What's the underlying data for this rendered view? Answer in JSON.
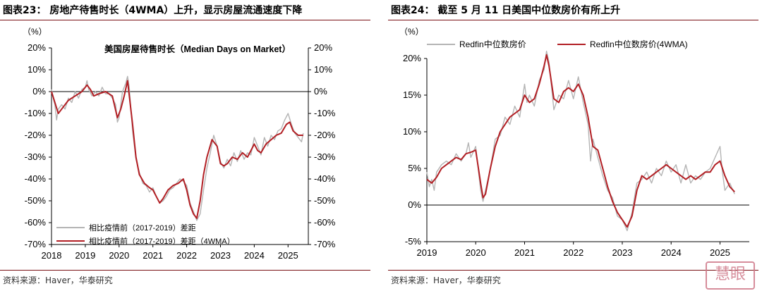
{
  "left": {
    "figure_title": "图表23：  房地产待售时长（4WMA）上升，显示房屋流通速度下降",
    "source": "资料来源：Haver，华泰研究",
    "unit_label": "（%）",
    "inner_title": "美国房屋待售时长（Median Days on Market）",
    "legend": [
      "相比疫情前（2017-2019）差距",
      "相比疫情前（2017-2019）差距（4WMA）"
    ]
  },
  "right": {
    "figure_title": "图表24：  截至 5 月 11 日美国中位数房价有所上升",
    "source": "资料来源：Haver，华泰研究",
    "unit_label": "（%）",
    "legend": [
      "Redfin中位数房价",
      "Redfin中位数房价(4WMA)"
    ]
  },
  "watermark_text": "慧眼",
  "colors": {
    "raw": "#b4b4b4",
    "smoothed": "#b21f24",
    "axis": "#000000",
    "rule": "#7a1216"
  },
  "chart_data": [
    {
      "type": "line",
      "title": "美国房屋待售时长（Median Days on Market）",
      "y_ticks": [
        "20%",
        "10%",
        "0%",
        "-10%",
        "-20%",
        "-30%",
        "-40%",
        "-50%",
        "-60%",
        "-70%"
      ],
      "x_ticks": [
        "2018",
        "2019",
        "2020",
        "2021",
        "2022",
        "2023",
        "2024",
        "2025"
      ],
      "ylim": [
        -70,
        20
      ],
      "xlim": [
        2018,
        2025.6
      ],
      "dual_y_axis": true,
      "legend_position": "bottom-left",
      "series": [
        {
          "name": "相比疫情前（2017-2019）差距（4WMA）",
          "x": [
            2018.0,
            2018.1,
            2018.2,
            2018.35,
            2018.5,
            2018.7,
            2018.9,
            2019.05,
            2019.15,
            2019.25,
            2019.4,
            2019.6,
            2019.8,
            2019.95,
            2020.05,
            2020.15,
            2020.25,
            2020.4,
            2020.5,
            2020.6,
            2020.75,
            2020.9,
            2021.0,
            2021.1,
            2021.2,
            2021.3,
            2021.45,
            2021.6,
            2021.75,
            2021.9,
            2022.0,
            2022.1,
            2022.2,
            2022.3,
            2022.4,
            2022.5,
            2022.6,
            2022.75,
            2022.9,
            2023.0,
            2023.1,
            2023.2,
            2023.35,
            2023.5,
            2023.65,
            2023.8,
            2024.0,
            2024.1,
            2024.2,
            2024.35,
            2024.5,
            2024.65,
            2024.8,
            2024.95,
            2025.05,
            2025.15,
            2025.3,
            2025.45
          ],
          "y": [
            0,
            -5,
            -10,
            -7,
            -4,
            -2,
            0,
            3,
            1,
            -2,
            -1,
            0,
            -2,
            -12,
            -8,
            -2,
            5,
            -15,
            -30,
            -38,
            -42,
            -44,
            -45,
            -48,
            -51,
            -49,
            -45,
            -43,
            -42,
            -40,
            -45,
            -52,
            -56,
            -58,
            -50,
            -38,
            -30,
            -22,
            -25,
            -33,
            -34,
            -33,
            -30,
            -31,
            -28,
            -30,
            -24,
            -27,
            -28,
            -24,
            -22,
            -20,
            -19,
            -15,
            -14,
            -18,
            -20,
            -20
          ]
        },
        {
          "name": "相比疫情前（2017-2019）差距",
          "x": [
            2018.0,
            2018.05,
            2018.1,
            2018.15,
            2018.2,
            2018.3,
            2018.4,
            2018.5,
            2018.6,
            2018.7,
            2018.8,
            2018.9,
            2019.0,
            2019.05,
            2019.1,
            2019.2,
            2019.3,
            2019.4,
            2019.5,
            2019.6,
            2019.7,
            2019.8,
            2019.9,
            2019.95,
            2020.0,
            2020.05,
            2020.1,
            2020.2,
            2020.25,
            2020.3,
            2020.4,
            2020.5,
            2020.6,
            2020.7,
            2020.8,
            2020.9,
            2021.0,
            2021.1,
            2021.2,
            2021.3,
            2021.4,
            2021.5,
            2021.6,
            2021.7,
            2021.8,
            2021.9,
            2022.0,
            2022.1,
            2022.2,
            2022.3,
            2022.4,
            2022.5,
            2022.6,
            2022.7,
            2022.8,
            2022.9,
            2023.0,
            2023.1,
            2023.2,
            2023.3,
            2023.4,
            2023.5,
            2023.6,
            2023.7,
            2023.8,
            2023.9,
            2024.0,
            2024.1,
            2024.2,
            2024.3,
            2024.4,
            2024.5,
            2024.6,
            2024.7,
            2024.8,
            2024.9,
            2025.0,
            2025.1,
            2025.2,
            2025.3,
            2025.4,
            2025.45
          ],
          "y": [
            1,
            -3,
            -6,
            -13,
            -8,
            -6,
            -8,
            -3,
            -5,
            0,
            -3,
            1,
            2,
            5,
            1,
            -2,
            0,
            -2,
            2,
            -1,
            -1,
            -3,
            -6,
            -14,
            -12,
            -6,
            0,
            4,
            7,
            2,
            -18,
            -31,
            -37,
            -42,
            -43,
            -46,
            -44,
            -48,
            -51,
            -50,
            -48,
            -45,
            -44,
            -42,
            -40,
            -41,
            -43,
            -51,
            -55,
            -59,
            -56,
            -45,
            -35,
            -28,
            -20,
            -25,
            -32,
            -35,
            -31,
            -34,
            -28,
            -32,
            -27,
            -31,
            -28,
            -29,
            -21,
            -25,
            -29,
            -21,
            -25,
            -20,
            -22,
            -18,
            -17,
            -13,
            -10,
            -15,
            -19,
            -21,
            -23,
            -19
          ]
        }
      ]
    },
    {
      "type": "line",
      "title": "",
      "y_ticks": [
        "20%",
        "15%",
        "10%",
        "5%",
        "0%",
        "-5%"
      ],
      "x_ticks": [
        "2019",
        "2020",
        "2021",
        "2022",
        "2023",
        "2024",
        "2025"
      ],
      "ylim": [
        -5,
        20
      ],
      "xlim": [
        2019,
        2025.6
      ],
      "legend_position": "top",
      "series": [
        {
          "name": "Redfin中位数房价(4WMA)",
          "x": [
            2019.0,
            2019.1,
            2019.2,
            2019.3,
            2019.4,
            2019.5,
            2019.6,
            2019.7,
            2019.8,
            2019.9,
            2020.0,
            2020.1,
            2020.15,
            2020.2,
            2020.3,
            2020.4,
            2020.5,
            2020.6,
            2020.7,
            2020.8,
            2020.9,
            2021.0,
            2021.1,
            2021.2,
            2021.3,
            2021.4,
            2021.45,
            2021.5,
            2021.6,
            2021.7,
            2021.8,
            2021.9,
            2022.0,
            2022.1,
            2022.2,
            2022.3,
            2022.4,
            2022.5,
            2022.6,
            2022.7,
            2022.8,
            2022.9,
            2023.0,
            2023.1,
            2023.2,
            2023.3,
            2023.4,
            2023.5,
            2023.6,
            2023.7,
            2023.8,
            2023.9,
            2024.0,
            2024.1,
            2024.2,
            2024.3,
            2024.4,
            2024.5,
            2024.6,
            2024.7,
            2024.8,
            2024.9,
            2025.0,
            2025.1,
            2025.2,
            2025.3
          ],
          "y": [
            3.5,
            3.0,
            3.8,
            5.0,
            5.5,
            6.0,
            6.5,
            6.2,
            7.0,
            7.2,
            7.5,
            3.0,
            1.0,
            1.5,
            5.0,
            8.0,
            10.0,
            11.0,
            12.0,
            12.5,
            13.0,
            15.0,
            14.0,
            14.5,
            16.5,
            19.0,
            20.5,
            19.0,
            14.5,
            14.0,
            15.5,
            16.0,
            15.5,
            16.5,
            15.0,
            12.0,
            8.0,
            7.5,
            5.0,
            2.5,
            0.5,
            -1.0,
            -2.0,
            -3.0,
            -1.5,
            2.0,
            4.0,
            3.5,
            4.0,
            4.5,
            5.0,
            5.5,
            5.0,
            4.5,
            4.0,
            3.5,
            4.0,
            3.5,
            4.0,
            4.5,
            4.5,
            5.5,
            6.0,
            4.0,
            2.5,
            1.8
          ]
        },
        {
          "name": "Redfin中位数房价",
          "x": [
            2019.0,
            2019.05,
            2019.1,
            2019.15,
            2019.2,
            2019.3,
            2019.4,
            2019.5,
            2019.6,
            2019.7,
            2019.8,
            2019.85,
            2019.9,
            2020.0,
            2020.05,
            2020.1,
            2020.15,
            2020.2,
            2020.3,
            2020.4,
            2020.5,
            2020.6,
            2020.7,
            2020.8,
            2020.9,
            2021.0,
            2021.05,
            2021.1,
            2021.2,
            2021.3,
            2021.4,
            2021.45,
            2021.5,
            2021.6,
            2021.7,
            2021.8,
            2021.9,
            2022.0,
            2022.1,
            2022.2,
            2022.3,
            2022.35,
            2022.4,
            2022.5,
            2022.6,
            2022.7,
            2022.8,
            2022.9,
            2023.0,
            2023.1,
            2023.2,
            2023.3,
            2023.4,
            2023.5,
            2023.6,
            2023.7,
            2023.8,
            2023.9,
            2024.0,
            2024.1,
            2024.2,
            2024.3,
            2024.4,
            2024.5,
            2024.6,
            2024.7,
            2024.8,
            2024.9,
            2025.0,
            2025.05,
            2025.1,
            2025.2,
            2025.3
          ],
          "y": [
            4.5,
            2.5,
            3.5,
            2.0,
            4.5,
            5.5,
            6.0,
            5.5,
            7.0,
            6.0,
            7.0,
            8.5,
            6.5,
            8.0,
            5.0,
            2.0,
            0.5,
            2.0,
            5.0,
            9.0,
            9.5,
            12.0,
            11.0,
            13.5,
            12.0,
            16.5,
            14.0,
            15.0,
            13.5,
            17.0,
            18.5,
            21.0,
            19.5,
            13.0,
            15.0,
            14.5,
            17.0,
            14.5,
            17.5,
            14.0,
            11.0,
            6.0,
            9.0,
            6.5,
            4.0,
            2.0,
            1.0,
            -1.5,
            -2.0,
            -3.5,
            -1.0,
            3.0,
            3.5,
            4.5,
            3.0,
            5.0,
            4.0,
            6.0,
            4.5,
            5.5,
            3.0,
            5.5,
            3.0,
            4.0,
            3.5,
            4.5,
            5.0,
            6.5,
            8.0,
            4.5,
            2.0,
            3.0,
            1.5
          ]
        }
      ]
    }
  ]
}
